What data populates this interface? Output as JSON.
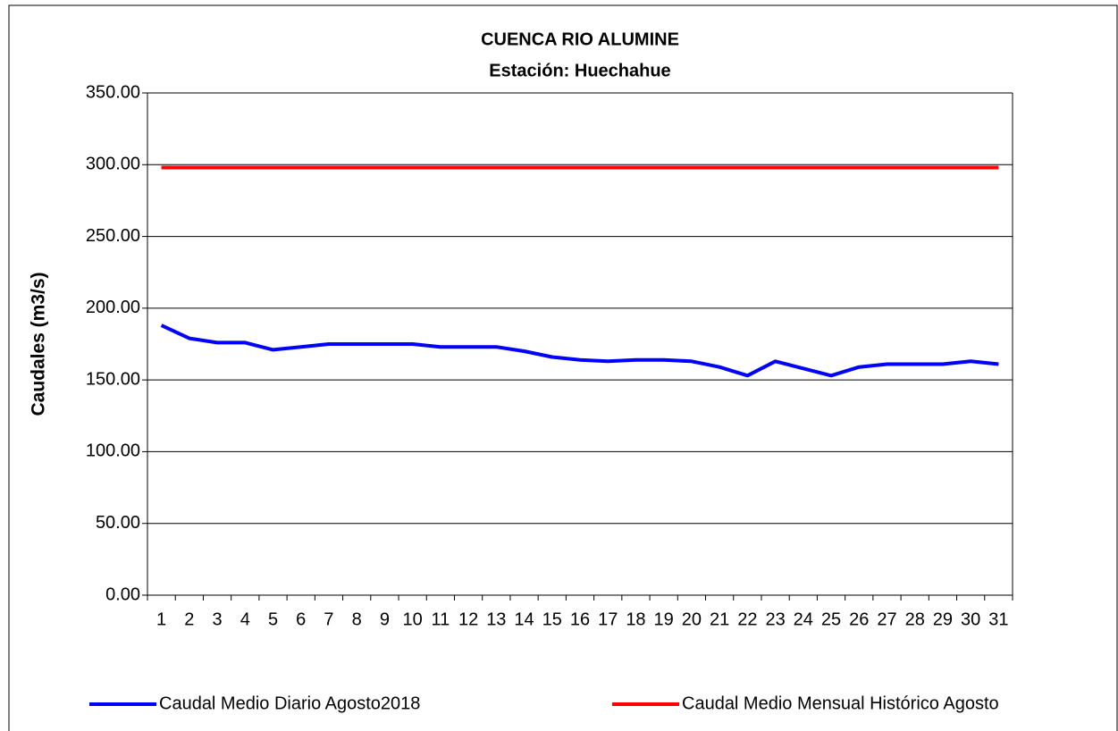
{
  "chart_data": {
    "type": "line",
    "title": "CUENCA RIO ALUMINE",
    "subtitle": "Estación: Huechahue",
    "y_label": "Caudales (m3/s)",
    "categories": [
      "1",
      "2",
      "3",
      "4",
      "5",
      "6",
      "7",
      "8",
      "9",
      "10",
      "11",
      "12",
      "13",
      "14",
      "15",
      "16",
      "17",
      "18",
      "19",
      "20",
      "21",
      "22",
      "23",
      "24",
      "25",
      "26",
      "27",
      "28",
      "29",
      "30",
      "31"
    ],
    "series": [
      {
        "name": "Caudal Medio Diario Agosto2018",
        "color": "#0000ff",
        "values": [
          188,
          179,
          176,
          176,
          171,
          173,
          175,
          175,
          175,
          175,
          173,
          173,
          173,
          170,
          166,
          164,
          163,
          164,
          164,
          163,
          159,
          153,
          163,
          158,
          153,
          159,
          161,
          161,
          161,
          163,
          161
        ]
      },
      {
        "name": "Caudal Medio Mensual Histórico Agosto",
        "color": "#ff0000",
        "values": [
          298,
          298,
          298,
          298,
          298,
          298,
          298,
          298,
          298,
          298,
          298,
          298,
          298,
          298,
          298,
          298,
          298,
          298,
          298,
          298,
          298,
          298,
          298,
          298,
          298,
          298,
          298,
          298,
          298,
          298,
          298
        ]
      }
    ],
    "ylim": [
      0,
      350
    ],
    "yticks": [
      {
        "value": 0,
        "label": "0.00"
      },
      {
        "value": 50,
        "label": "50.00"
      },
      {
        "value": 100,
        "label": "100.00"
      },
      {
        "value": 150,
        "label": "150.00"
      },
      {
        "value": 200,
        "label": "200.00"
      },
      {
        "value": 250,
        "label": "250.00"
      },
      {
        "value": 300,
        "label": "300.00"
      },
      {
        "value": 350,
        "label": "350.00"
      }
    ],
    "grid": true,
    "legend": "bottom"
  }
}
